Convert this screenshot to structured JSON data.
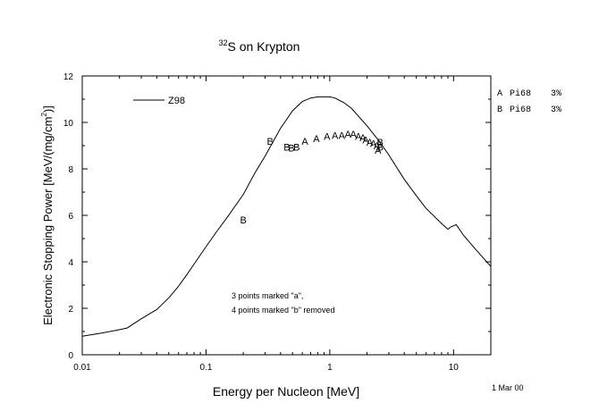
{
  "chart_data": {
    "type": "line",
    "title_superscript": "32",
    "title_text": "S on Krypton",
    "xlabel": "Energy per Nucleon [MeV]",
    "ylabel_pre": "Electronic Stopping Power [MeV/(mg/cm",
    "ylabel_sup": "2",
    "ylabel_post": ")]",
    "x_scale": "log",
    "xlim": [
      0.01,
      20
    ],
    "ylim": [
      0,
      12
    ],
    "x_ticks": [
      {
        "value": 0.01,
        "label": "0.01"
      },
      {
        "value": 0.1,
        "label": "0.1"
      },
      {
        "value": 1,
        "label": "1"
      },
      {
        "value": 10,
        "label": "10"
      }
    ],
    "y_ticks": [
      0,
      2,
      4,
      6,
      8,
      10,
      12
    ],
    "grid": false,
    "curve": {
      "name": "Z98",
      "x": [
        0.01,
        0.015,
        0.02,
        0.023,
        0.03,
        0.04,
        0.05,
        0.06,
        0.07,
        0.08,
        0.1,
        0.12,
        0.15,
        0.2,
        0.25,
        0.3,
        0.4,
        0.5,
        0.6,
        0.7,
        0.8,
        0.9,
        1.0,
        1.1,
        1.3,
        1.5,
        2.0,
        2.5,
        3.0,
        4.0,
        5.0,
        6.0,
        7.0,
        8.0,
        9.0,
        9.5,
        10.0,
        10.5,
        12.0,
        15.0,
        20.0
      ],
      "y": [
        0.8,
        0.95,
        1.08,
        1.15,
        1.55,
        1.95,
        2.45,
        2.95,
        3.45,
        3.9,
        4.65,
        5.25,
        5.95,
        6.9,
        7.85,
        8.55,
        9.75,
        10.5,
        10.9,
        11.05,
        11.1,
        11.1,
        11.1,
        11.05,
        10.85,
        10.6,
        9.85,
        9.2,
        8.6,
        7.55,
        6.85,
        6.3,
        5.95,
        5.65,
        5.4,
        5.5,
        5.55,
        5.6,
        5.15,
        4.55,
        3.8
      ]
    },
    "points": [
      {
        "marker": "B",
        "x": 0.2,
        "y": 5.8
      },
      {
        "marker": "B",
        "x": 0.33,
        "y": 9.2
      },
      {
        "marker": "B",
        "x": 0.45,
        "y": 8.95
      },
      {
        "marker": "B",
        "x": 0.49,
        "y": 8.9
      },
      {
        "marker": "B",
        "x": 0.54,
        "y": 8.95
      },
      {
        "marker": "A",
        "x": 0.63,
        "y": 9.2
      },
      {
        "marker": "A",
        "x": 0.78,
        "y": 9.3
      },
      {
        "marker": "A",
        "x": 0.95,
        "y": 9.4
      },
      {
        "marker": "A",
        "x": 1.1,
        "y": 9.45
      },
      {
        "marker": "A",
        "x": 1.25,
        "y": 9.45
      },
      {
        "marker": "A",
        "x": 1.4,
        "y": 9.5
      },
      {
        "marker": "A",
        "x": 1.55,
        "y": 9.5
      },
      {
        "marker": "A",
        "x": 1.7,
        "y": 9.4
      },
      {
        "marker": "A",
        "x": 1.85,
        "y": 9.35
      },
      {
        "marker": "A",
        "x": 1.95,
        "y": 9.25
      },
      {
        "marker": "A",
        "x": 2.1,
        "y": 9.15
      },
      {
        "marker": "A",
        "x": 2.25,
        "y": 9.1
      },
      {
        "marker": "A",
        "x": 2.4,
        "y": 9.0
      },
      {
        "marker": "A",
        "x": 2.45,
        "y": 8.8
      },
      {
        "marker": "B",
        "x": 2.55,
        "y": 9.15
      },
      {
        "marker": "B",
        "x": 2.55,
        "y": 8.95
      }
    ],
    "legend_line_label": "Z98",
    "legend_entries": [
      {
        "marker": "A",
        "text": "Pi68",
        "percent": "3%"
      },
      {
        "marker": "B",
        "text": "Pi68",
        "percent": "3%"
      }
    ],
    "annotation_lines": [
      "3 points marked \"a\",",
      "4 points marked \"b\" removed"
    ],
    "date_stamp": "1 Mar 00"
  }
}
